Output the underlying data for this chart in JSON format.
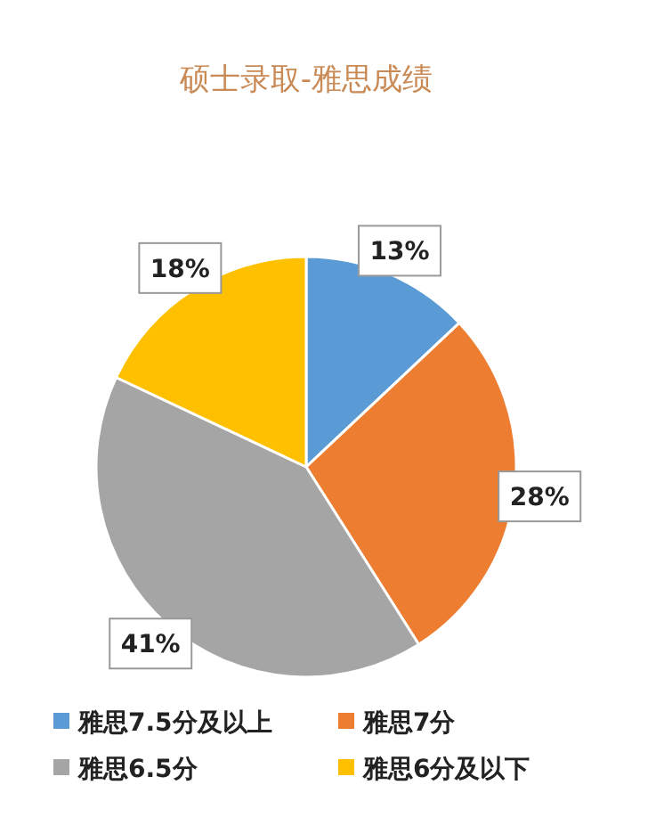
{
  "chart_data": {
    "type": "pie",
    "title": "硕士录取-雅思成绩",
    "categories": [
      "雅思7.5分及以上",
      "雅思7分",
      "雅思6.5分",
      "雅思6分及以下"
    ],
    "values": [
      13,
      28,
      41,
      18
    ],
    "colors": [
      "#5b9bd5",
      "#ed7d31",
      "#a5a5a5",
      "#ffc000"
    ],
    "value_labels": [
      "13%",
      "28%",
      "41%",
      "18%"
    ],
    "legend": "bottom"
  }
}
